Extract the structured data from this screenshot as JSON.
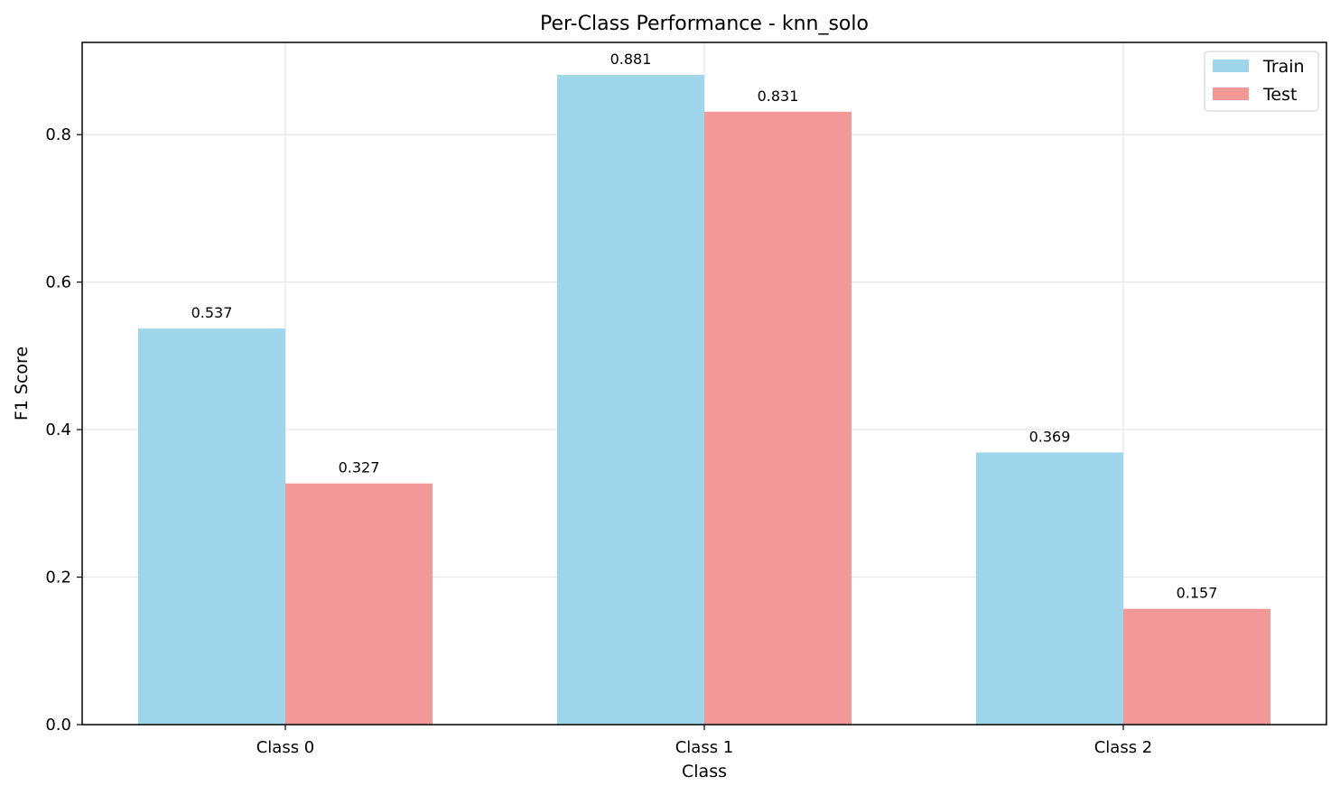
{
  "chart_data": {
    "type": "bar",
    "title": "Per-Class Performance - knn_solo",
    "xlabel": "Class",
    "ylabel": "F1 Score",
    "categories": [
      "Class 0",
      "Class 1",
      "Class 2"
    ],
    "series": [
      {
        "name": "Train",
        "color": "#9fd6ec",
        "values": [
          0.537,
          0.881,
          0.369
        ],
        "labels": [
          "0.537",
          "0.881",
          "0.369"
        ]
      },
      {
        "name": "Test",
        "color": "#f29998",
        "values": [
          0.327,
          0.831,
          0.157
        ],
        "labels": [
          "0.327",
          "0.831",
          "0.157"
        ]
      }
    ],
    "ylim": [
      0,
      0.925
    ],
    "yticks": [
      0.0,
      0.2,
      0.4,
      0.6,
      0.8
    ],
    "ytick_labels": [
      "0.0",
      "0.2",
      "0.4",
      "0.6",
      "0.8"
    ],
    "grid": true,
    "legend_position": "top-right"
  }
}
